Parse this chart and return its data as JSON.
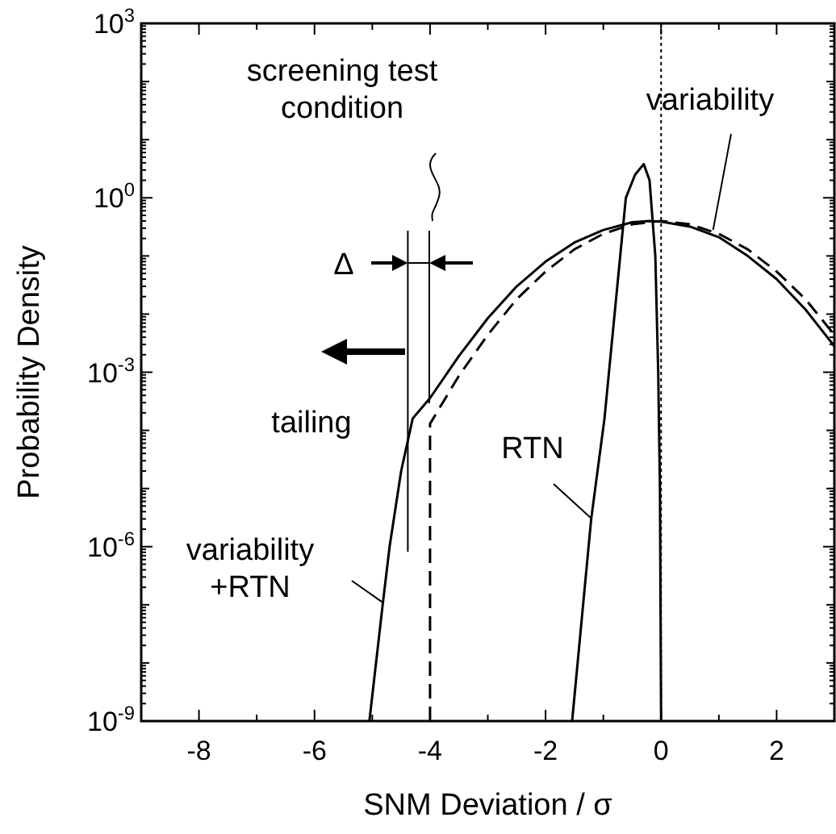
{
  "chart_data": {
    "type": "line",
    "xlabel": "SNM Deviation / σ",
    "ylabel": "Probability Density",
    "log": "y",
    "grid": false,
    "marker": "none",
    "xlim": [
      -9,
      3
    ],
    "xticks": [
      {
        "value": -9,
        "label": null
      },
      -8,
      {
        "value": -7,
        "label": null
      },
      -6,
      {
        "value": -5,
        "label": null
      },
      -4,
      {
        "value": -3,
        "label": null
      },
      -2,
      {
        "value": -1,
        "label": null
      },
      0,
      {
        "value": 1,
        "label": null
      },
      2,
      {
        "value": 3,
        "label": null
      }
    ],
    "ylim": [
      1e-09,
      1000
    ],
    "yticks": [
      {
        "value": 1e-09,
        "label": "10$^{-9}$"
      },
      {
        "value": 1e-08,
        "label": null
      },
      {
        "value": 1e-07,
        "label": null
      },
      {
        "value": 1e-06,
        "label": "10$^{-6}$"
      },
      {
        "value": 1e-05,
        "label": null
      },
      {
        "value": 0.0001,
        "label": null
      },
      {
        "value": 0.001,
        "label": "10$^{-3}$"
      },
      {
        "value": 0.01,
        "label": null
      },
      {
        "value": 0.1,
        "label": null
      },
      {
        "value": 1,
        "label": "10$^{0}$"
      },
      {
        "value": 10,
        "label": null
      },
      {
        "value": 100,
        "label": null
      },
      {
        "value": 1000,
        "label": "10$^{3}$"
      }
    ],
    "series": [
      {
        "color": "#000000",
        "line_style": "dashed",
        "x": [
          -4,
          -4,
          -3.5,
          -3,
          -2.5,
          -2,
          -1.5,
          -1,
          -0.5,
          0,
          0.5,
          1,
          1.5,
          2,
          2.5,
          3
        ],
        "values": [
          1e-09,
          0.00013,
          0.00087,
          0.0044,
          0.018,
          0.054,
          0.13,
          0.24,
          0.35,
          0.4,
          0.35,
          0.24,
          0.13,
          0.054,
          0.018,
          0.0044
        ]
      },
      {
        "color": "#000000",
        "line_style": "solid",
        "x": [
          -5.05,
          -4.82,
          -4.7,
          -4.5,
          -4.3,
          -4,
          -3.5,
          -3,
          -2.5,
          -2,
          -1.5,
          -1,
          -0.5,
          -0.2,
          0,
          0.5,
          1,
          1.5,
          2,
          2.5,
          3
        ],
        "values": [
          1e-09,
          1e-07,
          1e-06,
          2e-05,
          0.00016,
          0.00036,
          0.0019,
          0.0085,
          0.03,
          0.08,
          0.17,
          0.28,
          0.38,
          0.4,
          0.39,
          0.32,
          0.21,
          0.1,
          0.04,
          0.012,
          0.0028
        ]
      },
      {
        "color": "#000000",
        "line_style": "solid",
        "x": [
          -1.54,
          -1.21,
          -0.98,
          -0.61,
          -0.45,
          -0.3,
          -0.2,
          -0.1,
          -0.05,
          -0.02,
          0
        ],
        "values": [
          1e-09,
          3e-06,
          0.00016,
          1,
          2.5,
          3.8,
          2,
          0.1,
          0.001,
          1e-05,
          1e-09
        ]
      }
    ],
    "ref_lines": [
      {
        "axis": "x",
        "value": 0,
        "label": null,
        "color": "#000000",
        "line_style": "dotted"
      }
    ],
    "annotations": [
      "screening test\ncondition",
      {
        "text": "variability",
        "x": 0.9,
        "y": 0.28
      },
      "tailing",
      {
        "text": "RTN",
        "x": -1.2,
        "y": 3e-06
      },
      {
        "text": "variability\n+RTN",
        "x": -4.82,
        "y": 1.1e-07
      },
      "Δ"
    ]
  }
}
